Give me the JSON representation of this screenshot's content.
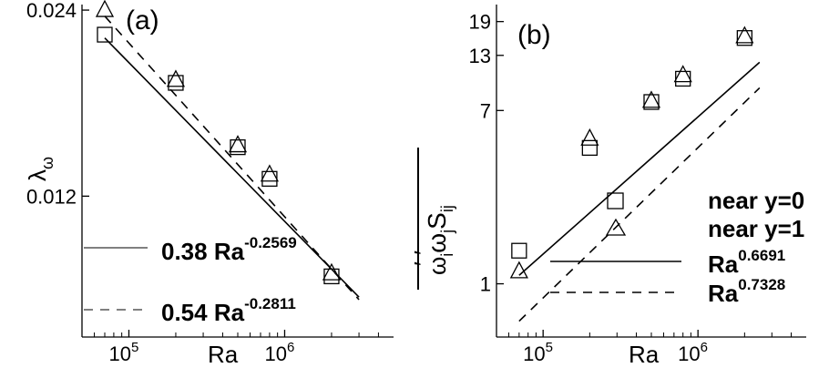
{
  "chart_data": [
    {
      "type": "scatter",
      "panel_label": "(a)",
      "xlabel": "Ra",
      "ylabel": "λ",
      "ylabel_sub": "ω",
      "x_scale": "log",
      "y_scale": "log",
      "xlim": [
        50000,
        5000000
      ],
      "ylim": [
        0.0071,
        0.0245
      ],
      "x_ticks": [
        {
          "value": 100000,
          "base": "10",
          "exp": "5"
        },
        {
          "value": 1000000,
          "base": "10",
          "exp": "6"
        }
      ],
      "y_ticks": [
        {
          "value": 0.024,
          "label": "0.024"
        },
        {
          "value": 0.012,
          "label": "0.012"
        }
      ],
      "series": [
        {
          "name": "",
          "marker": "square",
          "x": [
            70000,
            200000,
            500000,
            800000,
            2000000
          ],
          "y": [
            0.0219,
            0.0183,
            0.0144,
            0.0128,
            0.0089
          ]
        },
        {
          "name": "",
          "marker": "triangle",
          "x": [
            70000,
            200000,
            500000,
            800000,
            2000000
          ],
          "y": [
            0.024,
            0.0185,
            0.0145,
            0.013,
            0.009
          ]
        }
      ],
      "fit_lines": [
        {
          "style": "solid",
          "coef": "0.38",
          "base": "Ra",
          "exp": "-0.2569",
          "a": 0.38,
          "b": -0.2569,
          "x_range": [
            70000,
            3000000
          ]
        },
        {
          "style": "dashed",
          "coef": "0.54",
          "base": "Ra",
          "exp": "-0.2811",
          "a": 0.54,
          "b": -0.2811,
          "x_range": [
            70000,
            3000000
          ]
        }
      ]
    },
    {
      "type": "scatter",
      "panel_label": "(b)",
      "xlabel": "Ra",
      "ylabel": "ω",
      "x_scale": "log",
      "y_scale": "log",
      "xlim": [
        50000,
        5000000
      ],
      "ylim": [
        0.55,
        23
      ],
      "x_ticks": [
        {
          "value": 100000,
          "base": "10",
          "exp": "5"
        },
        {
          "value": 1000000,
          "base": "10",
          "exp": "6"
        }
      ],
      "y_ticks": [
        {
          "value": 1,
          "label": "1"
        },
        {
          "value": 7,
          "label": "7"
        },
        {
          "value": 13,
          "label": "13"
        },
        {
          "value": 19,
          "label": "19"
        }
      ],
      "series": [
        {
          "name": "near y=0",
          "marker": "square",
          "x": [
            70000,
            200000,
            500000,
            800000,
            2000000
          ],
          "y": [
            1.45,
            4.6,
            7.7,
            10.0,
            15.8
          ]
        },
        {
          "name": "near y=1",
          "marker": "triangle",
          "x": [
            70000,
            200000,
            500000,
            800000,
            2000000
          ],
          "y": [
            1.15,
            5.1,
            7.8,
            10.4,
            16.1
          ]
        }
      ],
      "fit_lines": [
        {
          "style": "solid",
          "base": "Ra",
          "exp": "0.6691",
          "a": 0.00063,
          "b": 0.6691,
          "x_range": [
            70000,
            2500000
          ]
        },
        {
          "style": "dashed",
          "base": "Ra",
          "exp": "0.7328",
          "a": 0.000185,
          "b": 0.7328,
          "x_range": [
            70000,
            2500000
          ]
        }
      ]
    }
  ]
}
